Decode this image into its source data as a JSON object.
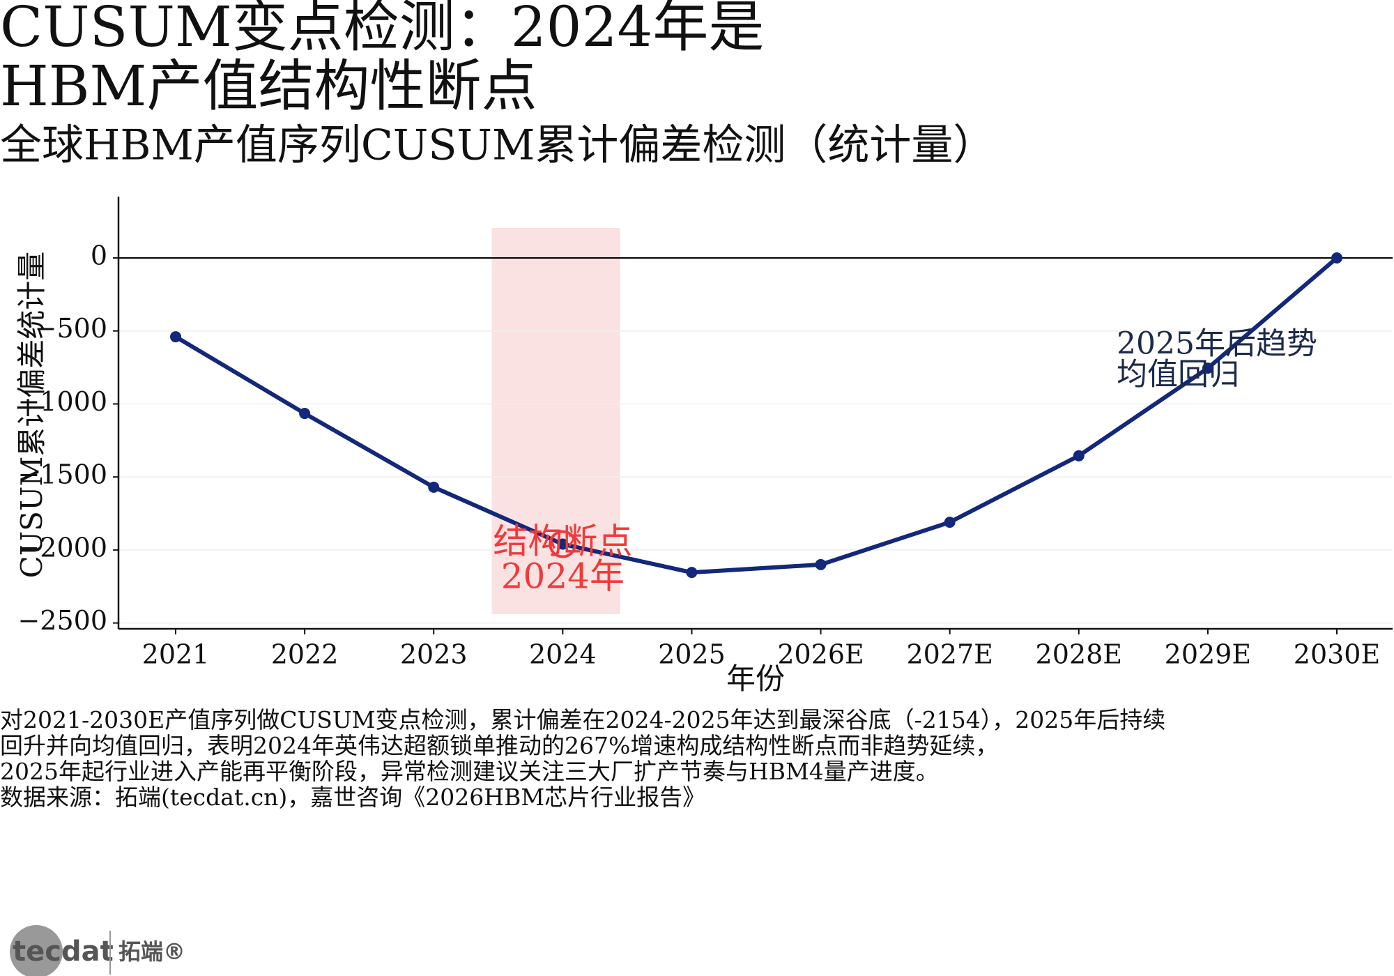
{
  "chart_data": {
    "type": "line",
    "title": [
      "CUSUM变点检测：2024年是",
      "HBM产值结构性断点"
    ],
    "subtitle": "全球HBM产值序列CUSUM累计偏差检测（统计量）",
    "x_label": "年份",
    "y_label": "CUSUM累计偏差统计量",
    "categories": [
      "2021",
      "2022",
      "2023",
      "2024",
      "2025",
      "2026E",
      "2027E",
      "2028E",
      "2029E",
      "2030E"
    ],
    "series": [
      {
        "color": "#13287a",
        "values": [
          -540,
          -1065,
          -1570,
          -1960,
          -2154,
          -2100,
          -1810,
          -1355,
          -755,
          0
        ]
      }
    ],
    "ylim": [
      -2540,
      420
    ],
    "yticks": [
      {
        "value": -2500,
        "label": "−2500"
      },
      {
        "value": -2000,
        "label": "−2000"
      },
      {
        "value": -1500,
        "label": "−1500"
      },
      {
        "value": -1000,
        "label": "−1000"
      },
      {
        "value": -500,
        "label": "−500"
      },
      0
    ],
    "grid": true,
    "reference_line": 0,
    "highlight_category": "2024",
    "highlight_color": "#fbe2e2",
    "annotations": [
      {
        "lines": [
          "结构断点",
          "2024年"
        ],
        "color": "#f03a3a"
      },
      {
        "lines": [
          "2025年后趋势",
          "均值回归"
        ],
        "color": "#1c2a4a"
      }
    ],
    "notes": [
      "对2021-2030E产值序列做CUSUM变点检测，累计偏差在2024-2025年达到最深谷底（-2154），2025年后持续",
      "回升并向均值回归，表明2024年英伟达超额锁单推动的267%增速构成结构性断点而非趋势延续，",
      "2025年起行业进入产能再平衡阶段，异常检测建议关注三大厂扩产节奏与HBM4量产进度。",
      "数据来源：拓端(tecdat.cn)，嘉世咨询《2026HBM芯片行业报告》"
    ],
    "logo": {
      "brand": "tecdat",
      "name": "拓端®"
    }
  }
}
